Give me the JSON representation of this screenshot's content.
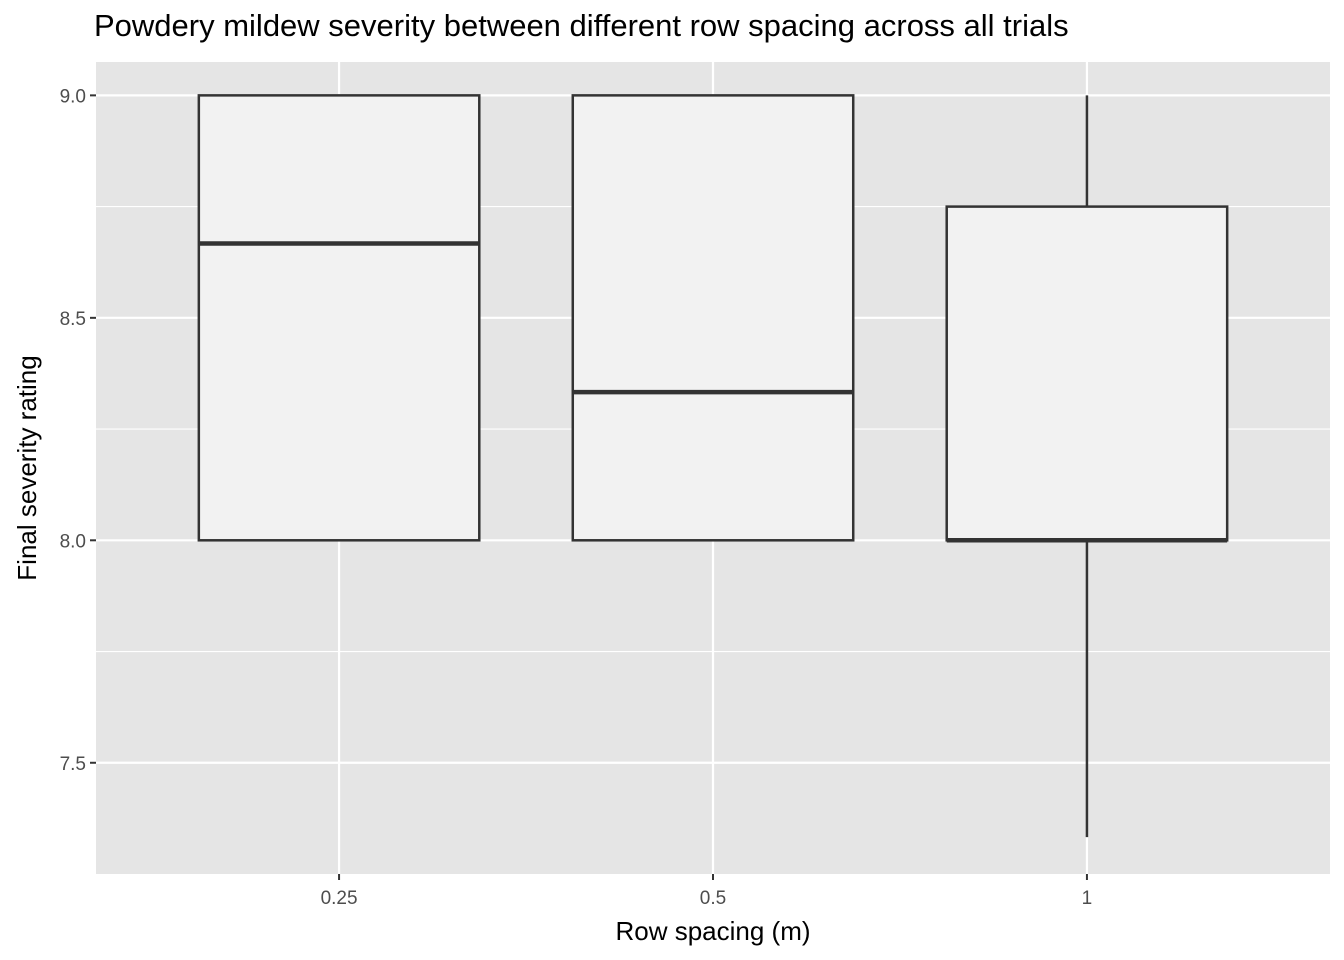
{
  "chart_data": {
    "type": "boxplot",
    "title": "Powdery mildew severity between different row spacing across all trials",
    "xlabel": "Row spacing (m)",
    "ylabel": "Final severity rating",
    "categories": [
      "0.25",
      "0.5",
      "1"
    ],
    "boxes": [
      {
        "category": "0.25",
        "whisker_low": 8.0,
        "q1": 8.0,
        "median": 8.667,
        "q3": 9.0,
        "whisker_high": 9.0
      },
      {
        "category": "0.5",
        "whisker_low": 8.0,
        "q1": 8.0,
        "median": 8.333,
        "q3": 9.0,
        "whisker_high": 9.0
      },
      {
        "category": "1",
        "whisker_low": 7.333,
        "q1": 8.0,
        "median": 8.0,
        "q3": 8.75,
        "whisker_high": 9.0
      }
    ],
    "yticks": [
      7.5,
      8.0,
      8.5,
      9.0
    ],
    "ytick_labels": [
      "7.5",
      "8.0",
      "8.5",
      "9.0"
    ],
    "ylim": [
      7.25,
      9.075
    ],
    "grid": true,
    "colors": {
      "panel_background": "#e5e5e5",
      "grid": "#ffffff",
      "box_fill": "#f2f2f2",
      "box_line": "#333333"
    }
  }
}
